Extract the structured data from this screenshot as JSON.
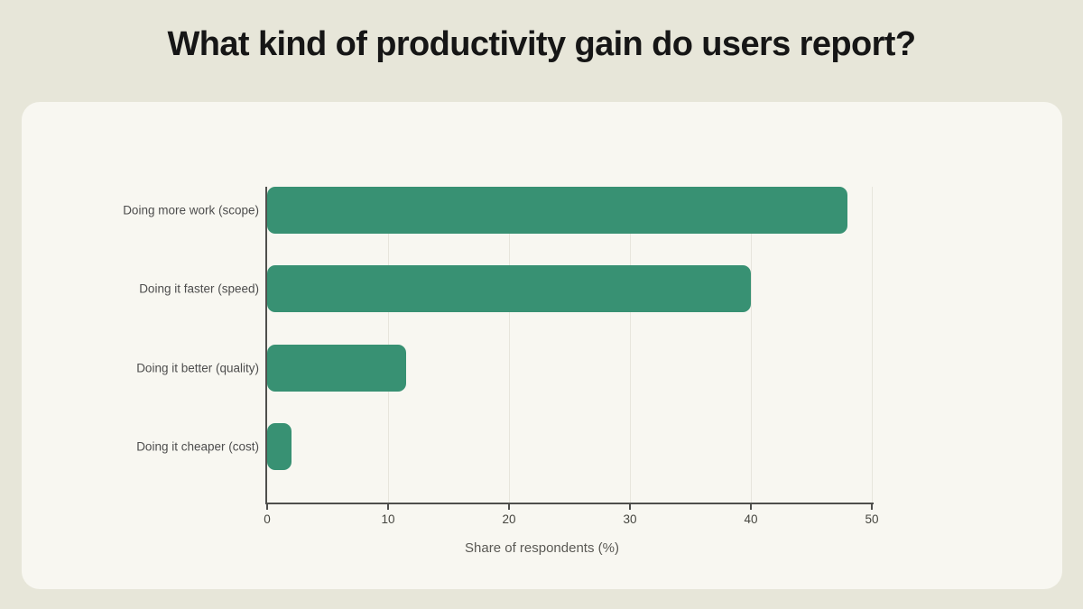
{
  "page": {
    "title": "What kind of productivity gain do users report?"
  },
  "chart_data": {
    "type": "bar",
    "orientation": "horizontal",
    "title": "What kind of productivity gain do users report?",
    "categories": [
      "Doing more work (scope)",
      "Doing it faster (speed)",
      "Doing it better (quality)",
      "Doing it cheaper (cost)"
    ],
    "values": [
      48,
      40,
      11.5,
      2
    ],
    "xlabel": "Share of respondents (%)",
    "xlim": [
      0,
      50
    ],
    "xticks": [
      0,
      10,
      20,
      30,
      40,
      50
    ],
    "grid": true,
    "legend": false,
    "bar_color": "#389173"
  },
  "colors": {
    "page_background": "#e7e6d9",
    "card_background": "#f8f7f1",
    "bar": "#389173",
    "axis": "#4f4f4c",
    "gridline": "#e7e5dc",
    "title_text": "#161616",
    "label_text": "#4d4d4d"
  }
}
